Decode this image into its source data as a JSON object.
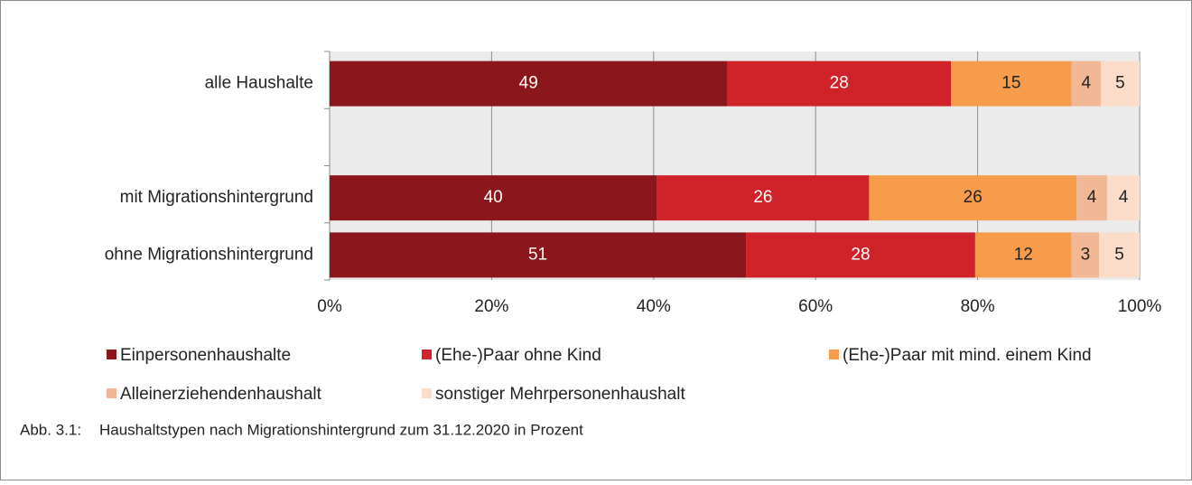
{
  "chart_data": {
    "type": "stacked_barh",
    "categories": [
      "alle Haushalte",
      null,
      "mit Migrationshintergrund",
      "ohne Migrationshintergrund"
    ],
    "series": [
      {
        "name": "Einpersonenhaushalte",
        "color": "#8b161c",
        "values": [
          49.1,
          null,
          40.4,
          51.4
        ],
        "value_labels": [
          "49",
          null,
          "40",
          "51"
        ]
      },
      {
        "name": "(Ehe-)Paar ohne Kind",
        "color": "#cf2229",
        "values": [
          27.6,
          null,
          26.2,
          28.3
        ],
        "value_labels": [
          "28",
          null,
          "26",
          "28"
        ]
      },
      {
        "name": "(Ehe-)Paar mit mind. einem Kind",
        "color": "#f69c4b",
        "values": [
          14.9,
          null,
          25.6,
          11.9
        ],
        "value_labels": [
          "15",
          null,
          "26",
          "12"
        ]
      },
      {
        "name": "Alleinerziehendenhaushalt",
        "color": "#f2b795",
        "values": [
          3.6,
          null,
          3.8,
          3.4
        ],
        "value_labels": [
          "4",
          null,
          "4",
          "3"
        ]
      },
      {
        "name": "sonstiger Mehrpersonenhaushalt",
        "color": "#fadcc8",
        "values": [
          4.8,
          null,
          4.0,
          5.0
        ],
        "value_labels": [
          "5",
          null,
          "4",
          "5"
        ]
      }
    ],
    "xlim": [
      0,
      100
    ],
    "xticks": [
      {
        "value": 0,
        "label": "0%"
      },
      {
        "value": 20,
        "label": "20%"
      },
      {
        "value": 40,
        "label": "40%"
      },
      {
        "value": 60,
        "label": "60%"
      },
      {
        "value": 80,
        "label": "80%"
      },
      {
        "value": 100,
        "label": "100%"
      }
    ],
    "grid": true,
    "legend": "bottom",
    "figure_label": "Abb. 3.1:",
    "caption": "Haushaltstypen nach Migrationshintergrund zum 31.12.2020 in Prozent"
  }
}
